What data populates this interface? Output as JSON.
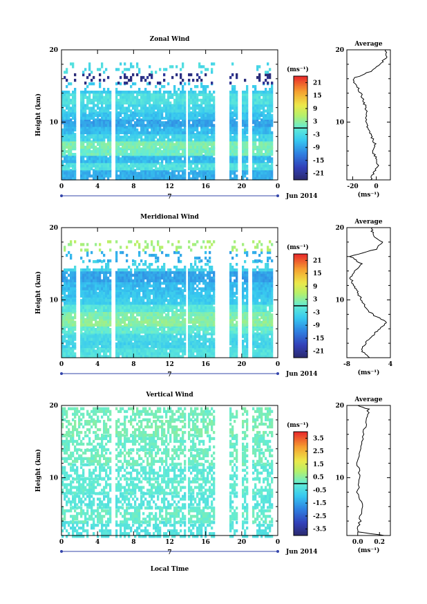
{
  "chart_data": [
    {
      "type": "heatmap",
      "title": "Zonal Wind",
      "ylabel": "Height (km)",
      "xlabel": "",
      "xticks": [
        "0",
        "4",
        "8",
        "12",
        "16",
        "20",
        "0"
      ],
      "yticks": [
        "10",
        "20"
      ],
      "ylim": [
        2,
        20
      ],
      "xlim": [
        0,
        24
      ],
      "date_label": "7",
      "month_label": "Jun 2014",
      "colorbar": {
        "unit": "(ms⁻¹)",
        "ticks": [
          "21",
          "15",
          "9",
          "3",
          "-3",
          "-9",
          "-15",
          "-21"
        ],
        "range": [
          -24,
          24
        ]
      },
      "rows": [
        {
          "h": 3.0,
          "u": -8
        },
        {
          "h": 4.0,
          "u": -2
        },
        {
          "h": 5.0,
          "u": -7
        },
        {
          "h": 6.0,
          "u": 1
        },
        {
          "h": 7.0,
          "u": 2
        },
        {
          "h": 8.0,
          "u": -4
        },
        {
          "h": 9.0,
          "u": -7
        },
        {
          "h": 10.0,
          "u": -9
        },
        {
          "h": 11.0,
          "u": -6
        },
        {
          "h": 12.0,
          "u": -4
        },
        {
          "h": 13.0,
          "u": -2
        },
        {
          "h": 15.0,
          "u": -5
        },
        {
          "h": 16.0,
          "u": -22
        },
        {
          "h": 17.5,
          "u": -3
        }
      ],
      "gaps": [
        [
          1.5,
          1.9
        ],
        [
          5.5,
          5.9
        ],
        [
          13.6,
          14.0
        ],
        [
          17.0,
          18.6
        ],
        [
          19.5,
          20.0
        ],
        [
          20.6,
          21.0
        ],
        [
          23.3,
          24.0
        ]
      ],
      "average": {
        "title": "Average",
        "xticks": [
          "-20",
          "0"
        ],
        "xlim": [
          -25,
          12
        ],
        "xunit": "(ms⁻¹)",
        "yticks": [
          "10",
          "20"
        ],
        "profile": [
          [
            -5,
            2
          ],
          [
            -2,
            3
          ],
          [
            1,
            4
          ],
          [
            0,
            5
          ],
          [
            -3,
            6
          ],
          [
            -1,
            7
          ],
          [
            -4,
            8
          ],
          [
            -7,
            9
          ],
          [
            -9,
            10
          ],
          [
            -8,
            11
          ],
          [
            -9,
            12
          ],
          [
            -11,
            13
          ],
          [
            -13,
            14
          ],
          [
            -17,
            15
          ],
          [
            -20,
            16
          ],
          [
            -5,
            17
          ],
          [
            3,
            18
          ],
          [
            9,
            19
          ],
          [
            8,
            20
          ]
        ]
      }
    },
    {
      "type": "heatmap",
      "title": "Meridional Wind",
      "ylabel": "Height (km)",
      "xlabel": "",
      "xticks": [
        "0",
        "4",
        "8",
        "12",
        "16",
        "20",
        "0"
      ],
      "yticks": [
        "10",
        "20"
      ],
      "ylim": [
        2,
        20
      ],
      "xlim": [
        0,
        24
      ],
      "date_label": "7",
      "month_label": "Jun 2014",
      "colorbar": {
        "unit": "(ms⁻¹)",
        "ticks": [
          "21",
          "15",
          "9",
          "3",
          "-3",
          "-9",
          "-15",
          "-21"
        ],
        "range": [
          -24,
          24
        ]
      },
      "rows": [
        {
          "h": 3.0,
          "u": -2
        },
        {
          "h": 4.0,
          "u": -4
        },
        {
          "h": 5.0,
          "u": -3
        },
        {
          "h": 6.0,
          "u": 0
        },
        {
          "h": 7.0,
          "u": 3
        },
        {
          "h": 8.0,
          "u": 2
        },
        {
          "h": 9.0,
          "u": -1
        },
        {
          "h": 10.0,
          "u": -5
        },
        {
          "h": 11.0,
          "u": -6
        },
        {
          "h": 12.0,
          "u": -7
        },
        {
          "h": 13.0,
          "u": -9
        },
        {
          "h": 15.0,
          "u": -4
        },
        {
          "h": 16.0,
          "u": -8
        },
        {
          "h": 17.5,
          "u": 5
        }
      ],
      "gaps": [
        [
          1.5,
          1.9
        ],
        [
          5.5,
          5.9
        ],
        [
          13.6,
          14.0
        ],
        [
          17.0,
          18.6
        ],
        [
          19.5,
          20.0
        ],
        [
          20.6,
          21.0
        ],
        [
          23.3,
          24.0
        ]
      ],
      "average": {
        "title": "Average",
        "xticks": [
          "-8",
          "4"
        ],
        "xlim": [
          -8,
          4
        ],
        "xunit": "(ms⁻¹)",
        "yticks": [
          "10",
          "20"
        ],
        "profile": [
          [
            -2,
            2
          ],
          [
            -4,
            3
          ],
          [
            -3,
            4
          ],
          [
            -1,
            5
          ],
          [
            1,
            6
          ],
          [
            3,
            7
          ],
          [
            -1,
            8
          ],
          [
            -3,
            9
          ],
          [
            -4,
            10
          ],
          [
            -5,
            11
          ],
          [
            -6,
            12
          ],
          [
            -7,
            13
          ],
          [
            -6,
            14
          ],
          [
            -4,
            15
          ],
          [
            -7,
            16
          ],
          [
            0,
            17
          ],
          [
            2,
            18
          ],
          [
            -1,
            19
          ],
          [
            -1,
            20
          ]
        ]
      }
    },
    {
      "type": "heatmap",
      "title": "Vertical Wind",
      "ylabel": "Height (km)",
      "xlabel": "Local Time",
      "xticks": [
        "0",
        "4",
        "8",
        "12",
        "16",
        "20",
        "0"
      ],
      "yticks": [
        "10",
        "20"
      ],
      "ylim": [
        2,
        20
      ],
      "xlim": [
        0,
        24
      ],
      "date_label": "7",
      "month_label": "Jun 2014",
      "colorbar": {
        "unit": "(ms⁻¹)",
        "ticks": [
          "3.5",
          "2.5",
          "1.5",
          "0.5",
          "-0.5",
          "-1.5",
          "-2.5",
          "-3.5"
        ],
        "range": [
          -4,
          4
        ]
      },
      "rows": [
        {
          "h": 3.0,
          "u": -0.3
        },
        {
          "h": 5.0,
          "u": 0.1
        },
        {
          "h": 7.0,
          "u": -0.2
        },
        {
          "h": 9.0,
          "u": 0.0
        },
        {
          "h": 11.0,
          "u": -0.1
        },
        {
          "h": 13.0,
          "u": 0.2
        },
        {
          "h": 15.0,
          "u": 0.1
        },
        {
          "h": 17.0,
          "u": 0.3
        },
        {
          "h": 19.0,
          "u": 0.2
        }
      ],
      "gaps": [
        [
          5.5,
          5.9
        ],
        [
          13.6,
          14.0
        ],
        [
          17.0,
          18.6
        ],
        [
          19.5,
          20.0
        ],
        [
          20.6,
          21.0
        ],
        [
          23.3,
          24.0
        ]
      ],
      "average": {
        "title": "Average",
        "xticks": [
          "0.0",
          "0.2"
        ],
        "xlim": [
          -0.1,
          0.3
        ],
        "xunit": "(ms⁻¹)",
        "yticks": [
          "10",
          "20"
        ],
        "profile": [
          [
            0.25,
            2
          ],
          [
            0.0,
            2.5
          ],
          [
            0.02,
            4
          ],
          [
            0.04,
            6
          ],
          [
            0.0,
            8
          ],
          [
            0.02,
            10
          ],
          [
            0.0,
            12
          ],
          [
            0.03,
            14
          ],
          [
            0.05,
            16
          ],
          [
            0.08,
            18
          ],
          [
            0.1,
            19.5
          ],
          [
            0.0,
            20
          ]
        ]
      }
    }
  ]
}
